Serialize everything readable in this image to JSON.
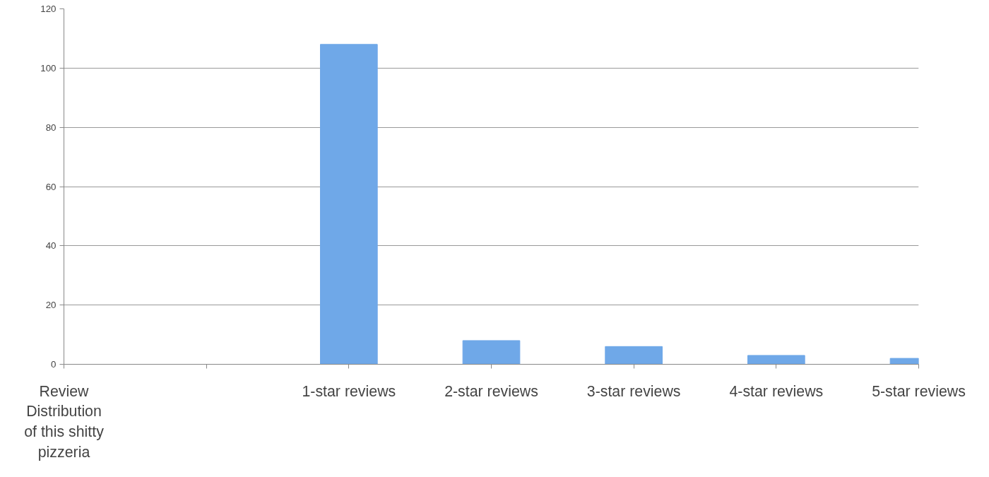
{
  "chart_data": {
    "type": "bar",
    "categories": [
      "Review Distribution of this shitty pizzeria",
      null,
      "1-star reviews",
      "2-star reviews",
      "3-star reviews",
      "4-star reviews",
      "5-star reviews"
    ],
    "values": [
      null,
      null,
      108,
      8,
      6,
      3,
      2
    ],
    "color": "#6fa8e8",
    "ylim": [
      0,
      120
    ],
    "yticks": [
      0,
      20,
      40,
      60,
      80,
      100,
      120
    ],
    "grid": "y"
  }
}
